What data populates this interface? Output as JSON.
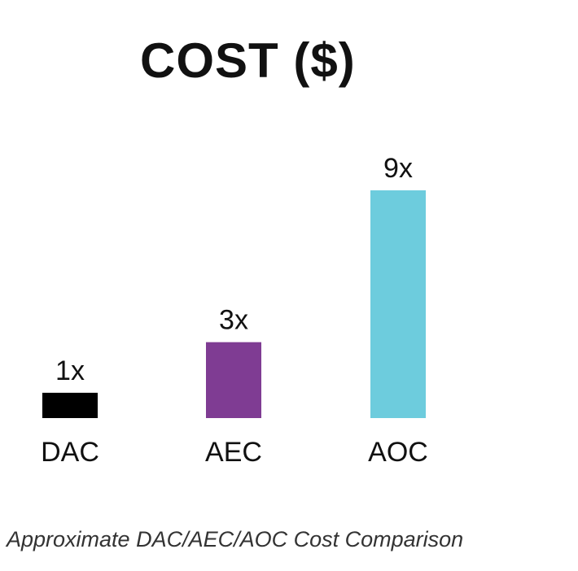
{
  "chart_data": {
    "type": "bar",
    "title": "COST ($)",
    "categories": [
      "DAC",
      "AEC",
      "AOC"
    ],
    "values": [
      1,
      3,
      9
    ],
    "value_labels": [
      "1x",
      "3x",
      "9x"
    ],
    "colors": [
      "#000000",
      "#7f3c93",
      "#6dccdd"
    ],
    "xlabel": "",
    "ylabel": "",
    "ylim": [
      0,
      9
    ],
    "grid": false,
    "legend": "none"
  },
  "caption": "Approximate DAC/AEC/AOC Cost Comparison"
}
